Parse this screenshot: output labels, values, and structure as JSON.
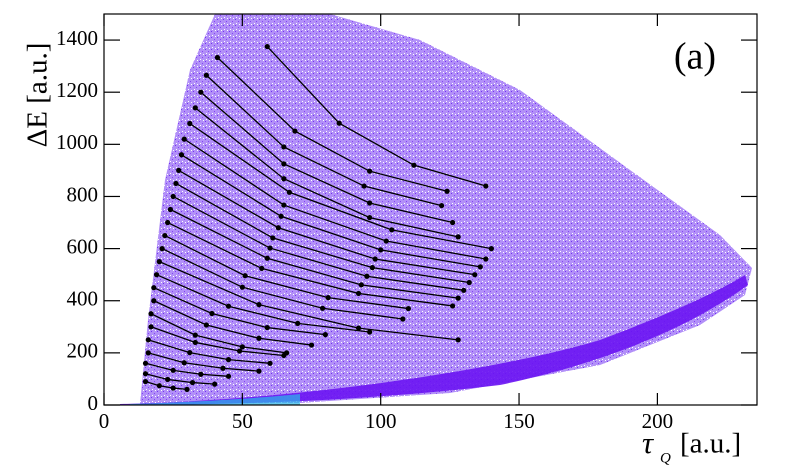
{
  "chart_data": {
    "type": "line",
    "panel_label": "(a)",
    "xlabel": {
      "symbol": "τ",
      "sub": "Q",
      "unit": "[a.u.]"
    },
    "ylabel": "ΔE [a.u.]",
    "xlim": [
      0,
      236
    ],
    "ylim": [
      0,
      1500
    ],
    "xticks": [
      0,
      50,
      100,
      150,
      200
    ],
    "yticks": [
      0,
      200,
      400,
      600,
      800,
      1000,
      1200,
      1400
    ],
    "color": "#000000",
    "series": [
      {
        "x": [
          59,
          85,
          112,
          138
        ],
        "values": [
          1375,
          1081,
          920,
          840
        ]
      },
      {
        "x": [
          41,
          69,
          96,
          124
        ],
        "values": [
          1333,
          1051,
          897,
          820
        ]
      },
      {
        "x": [
          37,
          65,
          94,
          122
        ],
        "values": [
          1265,
          990,
          840,
          765
        ]
      },
      {
        "x": [
          35,
          65,
          96,
          126
        ],
        "values": [
          1200,
          925,
          775,
          700
        ]
      },
      {
        "x": [
          33,
          65,
          96,
          128
        ],
        "values": [
          1140,
          868,
          719,
          645
        ]
      },
      {
        "x": [
          31,
          67,
          104,
          140
        ],
        "values": [
          1080,
          816,
          672,
          600
        ]
      },
      {
        "x": [
          29,
          65,
          102,
          138
        ],
        "values": [
          1020,
          767,
          629,
          560
        ]
      },
      {
        "x": [
          28,
          64,
          100,
          136
        ],
        "values": [
          960,
          724,
          595,
          530
        ]
      },
      {
        "x": [
          27,
          63,
          98,
          134
        ],
        "values": [
          900,
          680,
          560,
          500
        ]
      },
      {
        "x": [
          26,
          61,
          97,
          132
        ],
        "values": [
          850,
          641,
          527,
          470
        ]
      },
      {
        "x": [
          25,
          60,
          95,
          130
        ],
        "values": [
          800,
          602,
          494,
          440
        ]
      },
      {
        "x": [
          24,
          59,
          93,
          128
        ],
        "values": [
          750,
          563,
          461,
          410
        ]
      },
      {
        "x": [
          23,
          57,
          92,
          126
        ],
        "values": [
          700,
          524,
          428,
          380
        ]
      },
      {
        "x": [
          22,
          51,
          81,
          110
        ],
        "values": [
          650,
          496,
          412,
          370
        ]
      },
      {
        "x": [
          21,
          50,
          79,
          108
        ],
        "values": [
          600,
          452,
          371,
          330
        ]
      },
      {
        "x": [
          20,
          56,
          92,
          128
        ],
        "values": [
          550,
          385,
          295,
          250
        ]
      },
      {
        "x": [
          19,
          45,
          70,
          96
        ],
        "values": [
          500,
          379,
          313,
          280
        ]
      },
      {
        "x": [
          18,
          39,
          59,
          80
        ],
        "values": [
          450,
          351,
          297,
          270
        ]
      },
      {
        "x": [
          18,
          37,
          56,
          75
        ],
        "values": [
          400,
          307,
          256,
          230
        ]
      },
      {
        "x": [
          17,
          33,
          50,
          66
        ],
        "values": [
          350,
          268,
          223,
          200
        ]
      },
      {
        "x": [
          17,
          33,
          49,
          65
        ],
        "values": [
          300,
          240,
          207,
          190
        ]
      },
      {
        "x": [
          16,
          31,
          45,
          60
        ],
        "values": [
          250,
          201,
          174,
          160
        ]
      },
      {
        "x": [
          16,
          29,
          43,
          56
        ],
        "values": [
          200,
          162,
          141,
          130
        ]
      },
      {
        "x": [
          15,
          25,
          35,
          45
        ],
        "values": [
          160,
          133,
          118,
          110
        ]
      },
      {
        "x": [
          15,
          23,
          32,
          40
        ],
        "values": [
          120,
          98,
          86,
          80
        ]
      },
      {
        "x": [
          15,
          20,
          25,
          30
        ],
        "values": [
          90,
          74,
          65,
          60
        ]
      }
    ]
  }
}
